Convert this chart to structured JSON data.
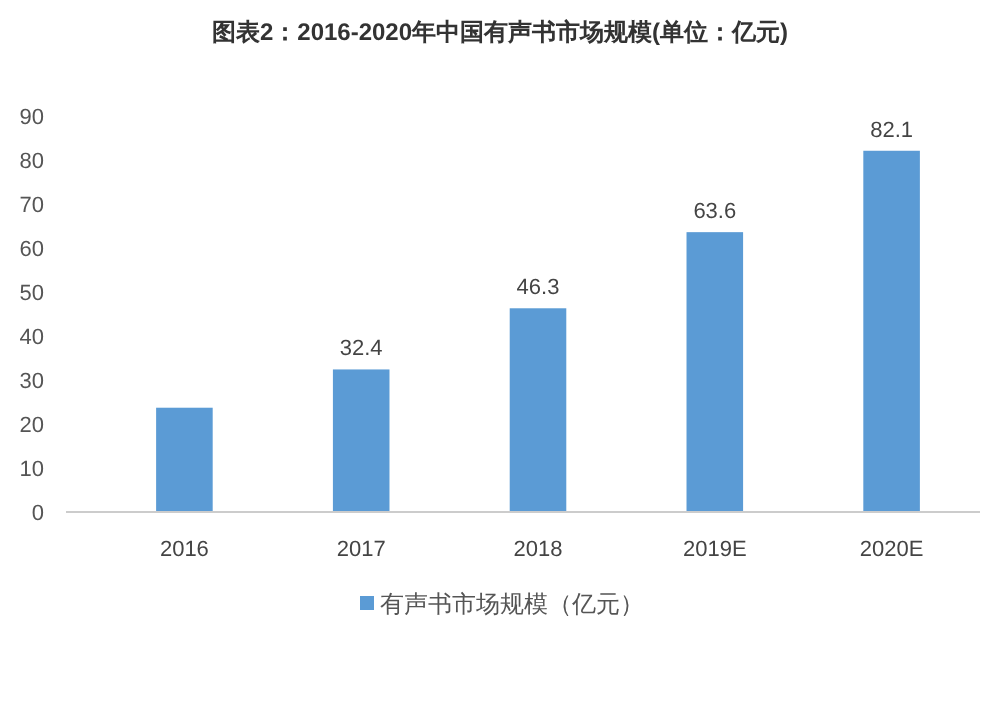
{
  "chart_data": {
    "type": "bar",
    "title": "图表2：2016-2020年中国有声书市场规模(单位：亿元)",
    "categories": [
      "2016",
      "2017",
      "2018",
      "2019E",
      "2020E"
    ],
    "series": [
      {
        "name": "有声书市场规模（亿元）",
        "color": "#5b9bd5",
        "values": [
          23.7,
          32.4,
          46.3,
          63.6,
          82.1
        ],
        "value_labels": [
          null,
          "32.4",
          "46.3",
          "63.6",
          "82.1"
        ]
      }
    ],
    "ylim": [
      0,
      90
    ],
    "yticks": [
      0,
      10,
      20,
      30,
      40,
      50,
      60,
      70,
      80,
      90
    ],
    "grid": false,
    "legend": "bottom"
  }
}
